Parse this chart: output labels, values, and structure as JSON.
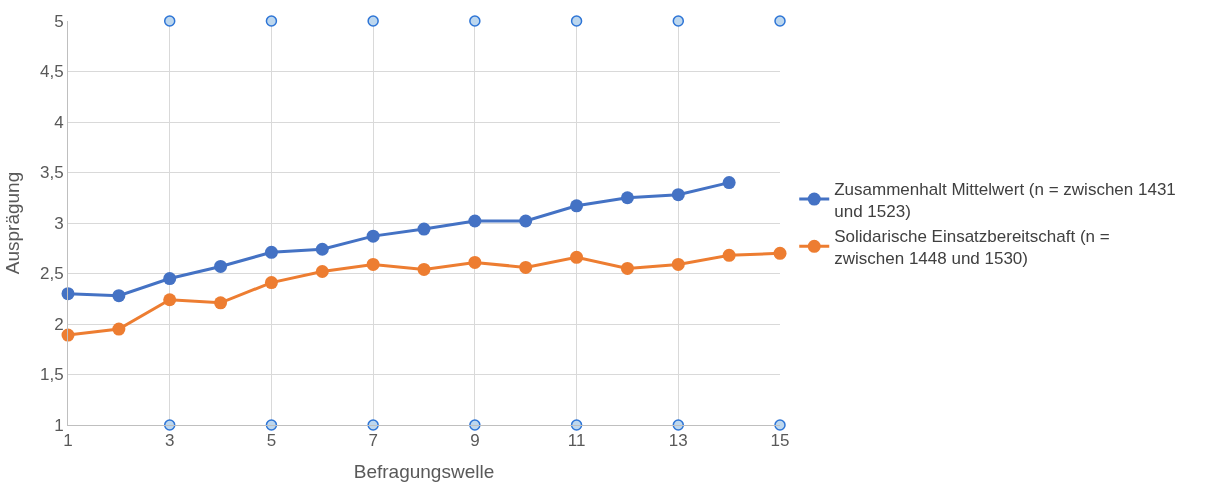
{
  "chart_data": {
    "type": "line",
    "xlabel": "Befragungswelle",
    "ylabel": "Ausprägung",
    "x": [
      1,
      2,
      3,
      4,
      5,
      6,
      7,
      8,
      9,
      10,
      11,
      12,
      13,
      14,
      15
    ],
    "series": [
      {
        "name": "Zusammenhalt Mittelwert (n = zwischen 1431 und 1523)",
        "color": "#4472c4",
        "values": [
          2.3,
          2.28,
          2.45,
          2.57,
          2.71,
          2.74,
          2.87,
          2.94,
          3.02,
          3.02,
          3.17,
          3.25,
          3.28,
          3.4,
          null
        ]
      },
      {
        "name": "Solidarische Einsatzbereitschaft (n = zwischen 1448 und 1530)",
        "color": "#ed7d31",
        "values": [
          1.89,
          1.95,
          2.24,
          2.21,
          2.41,
          2.52,
          2.59,
          2.54,
          2.61,
          2.56,
          2.66,
          2.55,
          2.59,
          2.68,
          2.7
        ]
      },
      {
        "type": "scatter",
        "color": "#bdd7ee",
        "x": [
          3,
          5,
          7,
          9,
          11,
          13,
          15
        ],
        "values": [
          5,
          5,
          5,
          5,
          5,
          5,
          5
        ]
      },
      {
        "type": "scatter",
        "color": "#bdd7ee",
        "x": [
          3,
          5,
          7,
          9,
          11,
          13,
          15
        ],
        "values": [
          1,
          1,
          1,
          1,
          1,
          1,
          1
        ]
      }
    ],
    "xlim": [
      1,
      15
    ],
    "xticks": [
      1,
      3,
      5,
      7,
      9,
      11,
      13,
      15
    ],
    "ylim": [
      1,
      5
    ],
    "yticks": [
      1,
      {
        "value": 1.5,
        "label": "1,5"
      },
      2,
      {
        "value": 2.5,
        "label": "2,5"
      },
      3,
      {
        "value": 3.5,
        "label": "3,5"
      },
      4,
      {
        "value": 4.5,
        "label": "4,5"
      },
      5
    ],
    "grid": true,
    "legend": "right",
    "marker": "circle",
    "line_style": "solid"
  }
}
